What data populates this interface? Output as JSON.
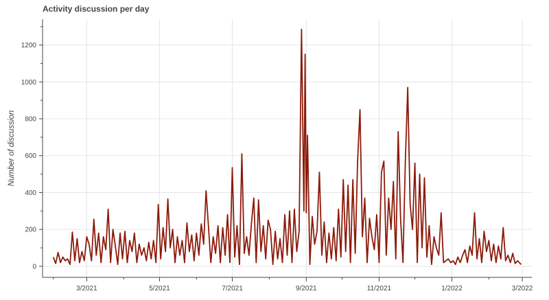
{
  "chart_data": {
    "type": "line",
    "title": "Activity discussion per day",
    "xlabel": "",
    "ylabel": "Number of discussion",
    "xlim": [
      "2021-01-23",
      "2022-03-09"
    ],
    "ylim": [
      -60,
      1340
    ],
    "x_ticks": [
      "2021-03-01",
      "2021-05-01",
      "2021-07-01",
      "2021-09-01",
      "2021-11-01",
      "2022-01-01",
      "2022-03-01"
    ],
    "x_tick_labels": [
      "3/2021",
      "5/2021",
      "7/2021",
      "9/2021",
      "11/2021",
      "1/2022",
      "3/2022"
    ],
    "y_ticks": [
      0,
      200,
      400,
      600,
      800,
      1000,
      1200
    ],
    "grid": true,
    "color": "#8b1a0a",
    "series": [
      {
        "points": [
          [
            "2021-02-01",
            50
          ],
          [
            "2021-02-03",
            15
          ],
          [
            "2021-02-05",
            75
          ],
          [
            "2021-02-07",
            20
          ],
          [
            "2021-02-09",
            50
          ],
          [
            "2021-02-11",
            30
          ],
          [
            "2021-02-13",
            40
          ],
          [
            "2021-02-15",
            10
          ],
          [
            "2021-02-17",
            185
          ],
          [
            "2021-02-19",
            30
          ],
          [
            "2021-02-21",
            150
          ],
          [
            "2021-02-23",
            20
          ],
          [
            "2021-02-25",
            80
          ],
          [
            "2021-02-27",
            30
          ],
          [
            "2021-03-01",
            160
          ],
          [
            "2021-03-03",
            120
          ],
          [
            "2021-03-05",
            30
          ],
          [
            "2021-03-07",
            255
          ],
          [
            "2021-03-09",
            60
          ],
          [
            "2021-03-11",
            180
          ],
          [
            "2021-03-13",
            20
          ],
          [
            "2021-03-15",
            160
          ],
          [
            "2021-03-17",
            90
          ],
          [
            "2021-03-19",
            310
          ],
          [
            "2021-03-21",
            20
          ],
          [
            "2021-03-23",
            200
          ],
          [
            "2021-03-25",
            110
          ],
          [
            "2021-03-27",
            10
          ],
          [
            "2021-03-29",
            180
          ],
          [
            "2021-03-31",
            40
          ],
          [
            "2021-04-02",
            190
          ],
          [
            "2021-04-04",
            20
          ],
          [
            "2021-04-06",
            140
          ],
          [
            "2021-04-08",
            80
          ],
          [
            "2021-04-10",
            180
          ],
          [
            "2021-04-12",
            20
          ],
          [
            "2021-04-14",
            120
          ],
          [
            "2021-04-16",
            60
          ],
          [
            "2021-04-18",
            100
          ],
          [
            "2021-04-20",
            30
          ],
          [
            "2021-04-22",
            130
          ],
          [
            "2021-04-24",
            40
          ],
          [
            "2021-04-26",
            140
          ],
          [
            "2021-04-28",
            20
          ],
          [
            "2021-04-30",
            335
          ],
          [
            "2021-05-02",
            40
          ],
          [
            "2021-05-04",
            210
          ],
          [
            "2021-05-06",
            80
          ],
          [
            "2021-05-08",
            365
          ],
          [
            "2021-05-10",
            100
          ],
          [
            "2021-05-12",
            200
          ],
          [
            "2021-05-14",
            20
          ],
          [
            "2021-05-16",
            160
          ],
          [
            "2021-05-18",
            60
          ],
          [
            "2021-05-20",
            140
          ],
          [
            "2021-05-22",
            20
          ],
          [
            "2021-05-24",
            235
          ],
          [
            "2021-05-26",
            80
          ],
          [
            "2021-05-28",
            170
          ],
          [
            "2021-05-30",
            30
          ],
          [
            "2021-06-01",
            180
          ],
          [
            "2021-06-03",
            60
          ],
          [
            "2021-06-05",
            230
          ],
          [
            "2021-06-07",
            120
          ],
          [
            "2021-06-09",
            410
          ],
          [
            "2021-06-11",
            220
          ],
          [
            "2021-06-13",
            20
          ],
          [
            "2021-06-15",
            160
          ],
          [
            "2021-06-17",
            70
          ],
          [
            "2021-06-19",
            220
          ],
          [
            "2021-06-21",
            20
          ],
          [
            "2021-06-23",
            210
          ],
          [
            "2021-06-25",
            60
          ],
          [
            "2021-06-27",
            280
          ],
          [
            "2021-06-29",
            20
          ],
          [
            "2021-07-01",
            535
          ],
          [
            "2021-07-03",
            50
          ],
          [
            "2021-07-05",
            220
          ],
          [
            "2021-07-07",
            10
          ],
          [
            "2021-07-09",
            610
          ],
          [
            "2021-07-11",
            70
          ],
          [
            "2021-07-13",
            160
          ],
          [
            "2021-07-15",
            60
          ],
          [
            "2021-07-17",
            230
          ],
          [
            "2021-07-19",
            370
          ],
          [
            "2021-07-21",
            20
          ],
          [
            "2021-07-23",
            360
          ],
          [
            "2021-07-25",
            80
          ],
          [
            "2021-07-27",
            220
          ],
          [
            "2021-07-29",
            40
          ],
          [
            "2021-07-31",
            250
          ],
          [
            "2021-08-02",
            200
          ],
          [
            "2021-08-04",
            10
          ],
          [
            "2021-08-06",
            190
          ],
          [
            "2021-08-08",
            40
          ],
          [
            "2021-08-10",
            150
          ],
          [
            "2021-08-12",
            20
          ],
          [
            "2021-08-14",
            280
          ],
          [
            "2021-08-16",
            60
          ],
          [
            "2021-08-18",
            300
          ],
          [
            "2021-08-20",
            20
          ],
          [
            "2021-08-22",
            310
          ],
          [
            "2021-08-24",
            80
          ],
          [
            "2021-08-26",
            190
          ],
          [
            "2021-08-28",
            1285
          ],
          [
            "2021-08-30",
            300
          ],
          [
            "2021-08-31",
            1150
          ],
          [
            "2021-09-01",
            290
          ],
          [
            "2021-09-02",
            710
          ],
          [
            "2021-09-04",
            10
          ],
          [
            "2021-09-06",
            270
          ],
          [
            "2021-09-08",
            120
          ],
          [
            "2021-09-10",
            190
          ],
          [
            "2021-09-12",
            510
          ],
          [
            "2021-09-14",
            60
          ],
          [
            "2021-09-16",
            240
          ],
          [
            "2021-09-18",
            20
          ],
          [
            "2021-09-20",
            180
          ],
          [
            "2021-09-22",
            40
          ],
          [
            "2021-09-24",
            210
          ],
          [
            "2021-09-26",
            30
          ],
          [
            "2021-09-28",
            310
          ],
          [
            "2021-09-30",
            50
          ],
          [
            "2021-10-02",
            470
          ],
          [
            "2021-10-04",
            80
          ],
          [
            "2021-10-06",
            440
          ],
          [
            "2021-10-08",
            20
          ],
          [
            "2021-10-10",
            470
          ],
          [
            "2021-10-12",
            70
          ],
          [
            "2021-10-14",
            570
          ],
          [
            "2021-10-16",
            850
          ],
          [
            "2021-10-18",
            160
          ],
          [
            "2021-10-20",
            370
          ],
          [
            "2021-10-22",
            20
          ],
          [
            "2021-10-24",
            260
          ],
          [
            "2021-10-26",
            160
          ],
          [
            "2021-10-28",
            90
          ],
          [
            "2021-10-30",
            280
          ],
          [
            "2021-11-01",
            20
          ],
          [
            "2021-11-03",
            510
          ],
          [
            "2021-11-05",
            570
          ],
          [
            "2021-11-07",
            60
          ],
          [
            "2021-11-09",
            370
          ],
          [
            "2021-11-11",
            200
          ],
          [
            "2021-11-13",
            460
          ],
          [
            "2021-11-15",
            40
          ],
          [
            "2021-11-17",
            730
          ],
          [
            "2021-11-19",
            260
          ],
          [
            "2021-11-21",
            20
          ],
          [
            "2021-11-23",
            570
          ],
          [
            "2021-11-25",
            970
          ],
          [
            "2021-11-27",
            340
          ],
          [
            "2021-11-29",
            200
          ],
          [
            "2021-12-01",
            560
          ],
          [
            "2021-12-03",
            20
          ],
          [
            "2021-12-05",
            500
          ],
          [
            "2021-12-07",
            100
          ],
          [
            "2021-12-09",
            480
          ],
          [
            "2021-12-11",
            50
          ],
          [
            "2021-12-13",
            220
          ],
          [
            "2021-12-15",
            10
          ],
          [
            "2021-12-17",
            160
          ],
          [
            "2021-12-19",
            100
          ],
          [
            "2021-12-21",
            60
          ],
          [
            "2021-12-23",
            290
          ],
          [
            "2021-12-25",
            20
          ],
          [
            "2021-12-27",
            30
          ],
          [
            "2021-12-29",
            40
          ],
          [
            "2021-12-31",
            20
          ],
          [
            "2022-01-02",
            30
          ],
          [
            "2022-01-04",
            10
          ],
          [
            "2022-01-06",
            50
          ],
          [
            "2022-01-08",
            20
          ],
          [
            "2022-01-10",
            60
          ],
          [
            "2022-01-12",
            90
          ],
          [
            "2022-01-14",
            20
          ],
          [
            "2022-01-16",
            110
          ],
          [
            "2022-01-18",
            60
          ],
          [
            "2022-01-20",
            290
          ],
          [
            "2022-01-22",
            40
          ],
          [
            "2022-01-24",
            150
          ],
          [
            "2022-01-26",
            20
          ],
          [
            "2022-01-28",
            190
          ],
          [
            "2022-01-30",
            80
          ],
          [
            "2022-02-01",
            140
          ],
          [
            "2022-02-03",
            30
          ],
          [
            "2022-02-05",
            120
          ],
          [
            "2022-02-07",
            20
          ],
          [
            "2022-02-09",
            110
          ],
          [
            "2022-02-11",
            40
          ],
          [
            "2022-02-13",
            210
          ],
          [
            "2022-02-15",
            30
          ],
          [
            "2022-02-17",
            60
          ],
          [
            "2022-02-19",
            20
          ],
          [
            "2022-02-21",
            70
          ],
          [
            "2022-02-23",
            15
          ],
          [
            "2022-02-25",
            30
          ],
          [
            "2022-02-28",
            10
          ]
        ]
      }
    ]
  }
}
